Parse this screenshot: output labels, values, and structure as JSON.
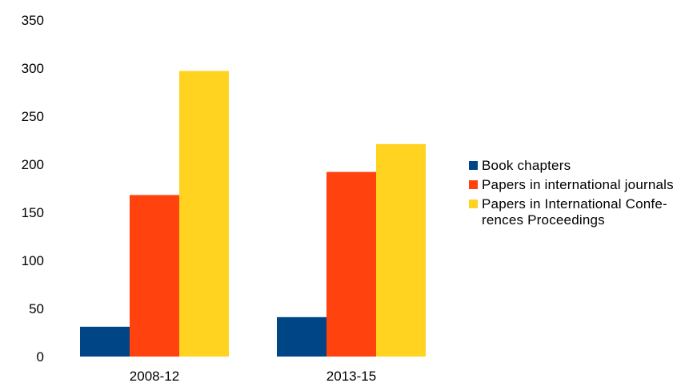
{
  "chart_data": {
    "type": "bar",
    "categories": [
      "2008-12",
      "2013-15"
    ],
    "series": [
      {
        "name": "Book chapters",
        "color": "#004586",
        "values": [
          31,
          41
        ]
      },
      {
        "name": "Papers in international journals",
        "color": "#ff420e",
        "values": [
          168,
          192
        ]
      },
      {
        "name": "Papers in International Confe-rences Proceedings",
        "color": "#ffd320",
        "values": [
          297,
          221
        ]
      }
    ],
    "yticks": [
      0,
      50,
      100,
      150,
      200,
      250,
      300,
      350
    ],
    "ylim": [
      0,
      350
    ],
    "grid": false,
    "legend_position": "right"
  },
  "legend": {
    "items": [
      {
        "label": "Book chapters",
        "color": "#004586"
      },
      {
        "label": "Papers in international journals",
        "color": "#ff420e"
      },
      {
        "label": "Papers in International Confe-rences Proceedings",
        "color": "#ffd320"
      }
    ]
  }
}
